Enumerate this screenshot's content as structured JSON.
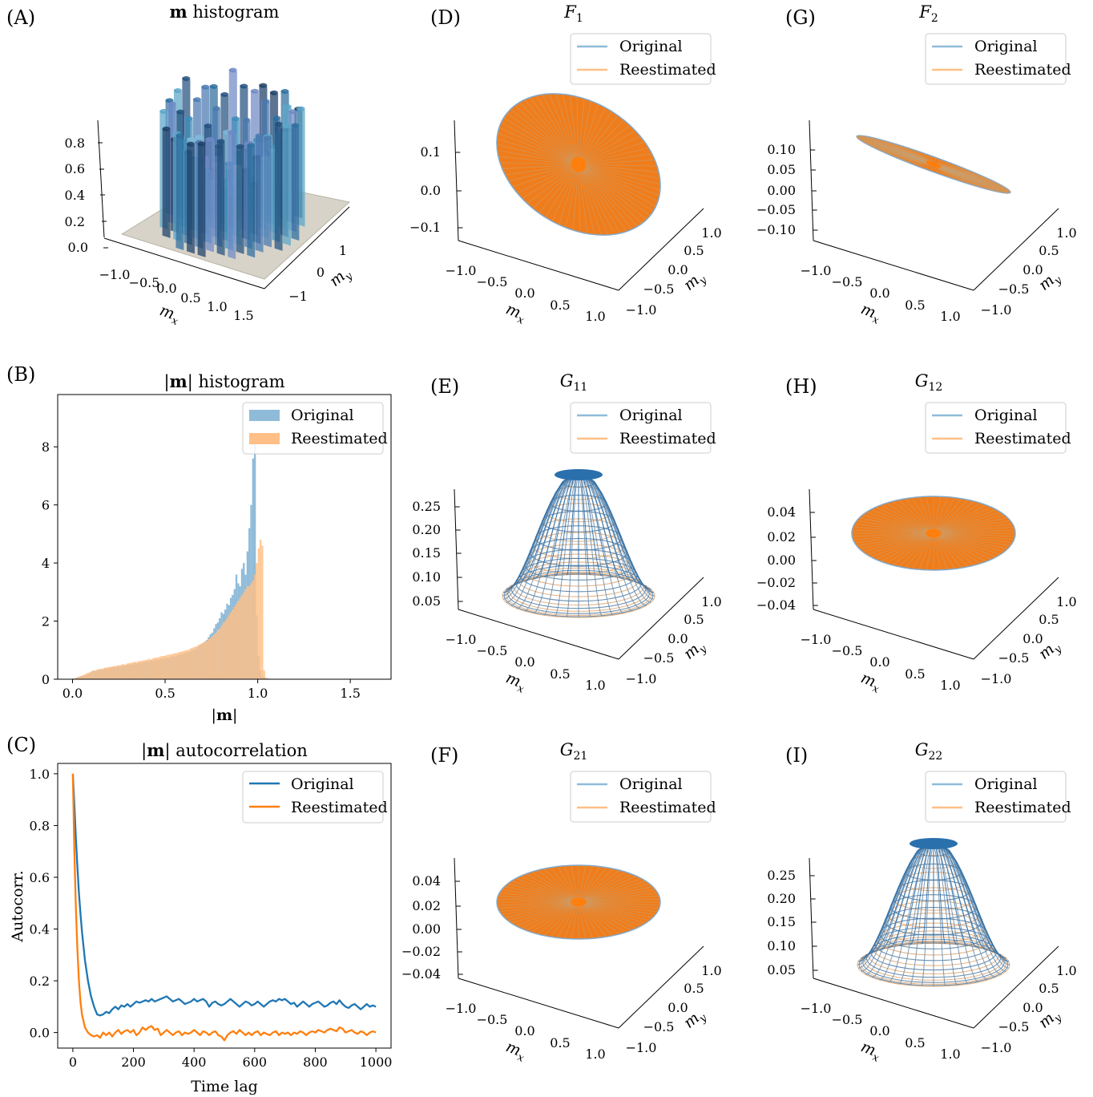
{
  "colors": {
    "original": "#1f77b4",
    "reestimated": "#ff7f0e",
    "original_light": "#8fbbd9",
    "reestimated_light": "#ffbf86"
  },
  "panels": {
    "A": {
      "label": "(A)",
      "title_bold": "m",
      "title_rest": "histogram",
      "xlabel": "m",
      "xlabel_sub": "x",
      "ylabel": "m",
      "ylabel_sub": "y",
      "xticks": [
        "−1.0",
        "−0.5",
        "0.0",
        "0.5",
        "1.0",
        "1.5"
      ],
      "yticks": [
        "−1",
        "0",
        "1"
      ],
      "zticks": [
        "0.0",
        "0.2",
        "0.4",
        "0.6",
        "0.8"
      ]
    },
    "D": {
      "label": "(D)",
      "title": "F",
      "title_sub": "1",
      "zticks": [
        "0.1",
        "0.0",
        "−0.1"
      ]
    },
    "G": {
      "label": "(G)",
      "title": "F",
      "title_sub": "2",
      "zticks": [
        "0.10",
        "0.05",
        "0.00",
        "−0.05",
        "−0.10"
      ]
    },
    "E": {
      "label": "(E)",
      "title": "G",
      "title_sub": "11",
      "zticks": [
        "0.25",
        "0.20",
        "0.15",
        "0.10",
        "0.05"
      ]
    },
    "H": {
      "label": "(H)",
      "title": "G",
      "title_sub": "12",
      "zticks": [
        "0.04",
        "0.02",
        "0.00",
        "−0.02",
        "−0.04"
      ]
    },
    "F": {
      "label": "(F)",
      "title": "G",
      "title_sub": "21",
      "zticks": [
        "0.04",
        "0.02",
        "0.00",
        "−0.02",
        "−0.04"
      ]
    },
    "I": {
      "label": "(I)",
      "title": "G",
      "title_sub": "22",
      "zticks": [
        "0.25",
        "0.20",
        "0.15",
        "0.10",
        "0.05"
      ]
    },
    "B": {
      "label": "(B)"
    },
    "C": {
      "label": "(C)"
    }
  },
  "surface_axes": {
    "xticks": [
      "−1.0",
      "−0.5",
      "0.0",
      "0.5",
      "1.0"
    ],
    "yticks": [
      "−1.0",
      "−0.5",
      "0.0",
      "0.5",
      "1.0"
    ],
    "xlabel": "m",
    "xlabel_sub": "x",
    "ylabel": "m",
    "ylabel_sub": "y"
  },
  "legend": {
    "original": "Original",
    "reestimated": "Reestimated"
  },
  "chart_data": [
    {
      "id": "B",
      "type": "bar",
      "title": "|m| histogram",
      "title_bold": "m",
      "xlabel": "|m|",
      "ylabel": "",
      "xlim": [
        -0.08,
        1.72
      ],
      "ylim": [
        0,
        9.8
      ],
      "xticks": [
        "0.0",
        "0.5",
        "1.0",
        "1.5"
      ],
      "xtick_values": [
        0,
        0.5,
        1.0,
        1.5
      ],
      "yticks": [
        "0",
        "2",
        "4",
        "6",
        "8"
      ],
      "ytick_values": [
        0,
        2,
        4,
        6,
        8
      ],
      "legend_position": "top-right",
      "series": [
        {
          "name": "Original",
          "bin_edges_start": 0.0,
          "bin_width": 0.01,
          "values": [
            0.02,
            0.03,
            0.06,
            0.08,
            0.1,
            0.12,
            0.14,
            0.15,
            0.18,
            0.2,
            0.26,
            0.3,
            0.28,
            0.33,
            0.3,
            0.35,
            0.33,
            0.36,
            0.38,
            0.36,
            0.4,
            0.4,
            0.42,
            0.4,
            0.45,
            0.43,
            0.46,
            0.48,
            0.45,
            0.5,
            0.5,
            0.52,
            0.5,
            0.55,
            0.53,
            0.56,
            0.58,
            0.56,
            0.6,
            0.6,
            0.62,
            0.6,
            0.65,
            0.63,
            0.66,
            0.68,
            0.66,
            0.7,
            0.7,
            0.72,
            0.72,
            0.75,
            0.74,
            0.78,
            0.8,
            0.78,
            0.82,
            0.85,
            0.84,
            0.88,
            0.9,
            0.92,
            0.95,
            0.96,
            1.0,
            1.02,
            1.05,
            1.1,
            1.15,
            1.2,
            1.25,
            1.3,
            1.35,
            1.45,
            1.55,
            1.6,
            1.75,
            1.9,
            1.95,
            2.1,
            2.3,
            2.25,
            2.4,
            2.6,
            2.55,
            2.8,
            2.9,
            3.1,
            3.6,
            3.3,
            3.2,
            3.8,
            4.0,
            3.6,
            4.4,
            5.2,
            6.0,
            7.6,
            8.2,
            2.2,
            0.8,
            0.3,
            0.1,
            0.05,
            0.03,
            0.02,
            0.01
          ]
        },
        {
          "name": "Reestimated",
          "bin_edges_start": 0.0,
          "bin_width": 0.01,
          "values": [
            0.02,
            0.04,
            0.06,
            0.09,
            0.11,
            0.13,
            0.16,
            0.2,
            0.22,
            0.25,
            0.28,
            0.3,
            0.3,
            0.34,
            0.35,
            0.35,
            0.37,
            0.4,
            0.4,
            0.42,
            0.42,
            0.44,
            0.45,
            0.46,
            0.48,
            0.48,
            0.5,
            0.52,
            0.5,
            0.54,
            0.55,
            0.56,
            0.58,
            0.6,
            0.58,
            0.62,
            0.62,
            0.64,
            0.65,
            0.66,
            0.68,
            0.7,
            0.68,
            0.72,
            0.74,
            0.74,
            0.76,
            0.78,
            0.8,
            0.8,
            0.82,
            0.84,
            0.85,
            0.86,
            0.88,
            0.9,
            0.9,
            0.93,
            0.95,
            0.96,
            0.98,
            1.0,
            1.0,
            1.05,
            1.08,
            1.1,
            1.12,
            1.15,
            1.2,
            1.22,
            1.25,
            1.3,
            1.32,
            1.38,
            1.42,
            1.48,
            1.55,
            1.6,
            1.7,
            1.75,
            1.85,
            1.95,
            2.0,
            2.1,
            2.2,
            2.3,
            2.4,
            2.5,
            2.6,
            2.7,
            2.8,
            2.9,
            3.0,
            3.1,
            3.2,
            3.2,
            3.3,
            3.4,
            3.6,
            4.0,
            4.5,
            4.8,
            4.6,
            0.3,
            0.05,
            0.01
          ]
        }
      ]
    },
    {
      "id": "C",
      "type": "line",
      "title": "|m| autocorrelation",
      "title_bold": "m",
      "xlabel": "Time lag",
      "ylabel": "Autocorr.",
      "xlim": [
        -50,
        1050
      ],
      "ylim": [
        -0.06,
        1.04
      ],
      "xticks": [
        "0",
        "200",
        "400",
        "600",
        "800",
        "1000"
      ],
      "xtick_values": [
        0,
        200,
        400,
        600,
        800,
        1000
      ],
      "yticks": [
        "0.0",
        "0.2",
        "0.4",
        "0.6",
        "0.8",
        "1.0"
      ],
      "ytick_values": [
        0,
        0.2,
        0.4,
        0.6,
        0.8,
        1.0
      ],
      "legend_position": "top-right",
      "x": [
        0,
        5,
        10,
        15,
        20,
        25,
        30,
        40,
        50,
        60,
        70,
        80,
        90,
        100,
        110,
        120,
        130,
        140,
        150,
        160,
        170,
        180,
        190,
        200,
        210,
        220,
        230,
        240,
        250,
        260,
        270,
        280,
        290,
        300,
        310,
        320,
        330,
        340,
        350,
        360,
        370,
        380,
        390,
        400,
        410,
        420,
        430,
        440,
        450,
        460,
        470,
        480,
        490,
        500,
        510,
        520,
        530,
        540,
        550,
        560,
        570,
        580,
        590,
        600,
        610,
        620,
        630,
        640,
        650,
        660,
        670,
        680,
        690,
        700,
        710,
        720,
        730,
        740,
        750,
        760,
        770,
        780,
        790,
        800,
        810,
        820,
        830,
        840,
        850,
        860,
        870,
        880,
        890,
        900,
        910,
        920,
        930,
        940,
        950,
        960,
        970,
        980,
        990,
        1000
      ],
      "series": [
        {
          "name": "Original",
          "values": [
            1.0,
            0.88,
            0.75,
            0.64,
            0.54,
            0.46,
            0.39,
            0.28,
            0.2,
            0.14,
            0.1,
            0.07,
            0.066,
            0.07,
            0.08,
            0.075,
            0.09,
            0.1,
            0.09,
            0.105,
            0.1,
            0.11,
            0.1,
            0.11,
            0.12,
            0.115,
            0.12,
            0.125,
            0.12,
            0.13,
            0.12,
            0.125,
            0.13,
            0.135,
            0.14,
            0.13,
            0.12,
            0.125,
            0.13,
            0.12,
            0.11,
            0.115,
            0.12,
            0.13,
            0.12,
            0.125,
            0.13,
            0.12,
            0.1,
            0.115,
            0.12,
            0.11,
            0.105,
            0.11,
            0.12,
            0.13,
            0.12,
            0.11,
            0.1,
            0.11,
            0.12,
            0.115,
            0.105,
            0.11,
            0.12,
            0.11,
            0.1,
            0.11,
            0.12,
            0.125,
            0.12,
            0.13,
            0.125,
            0.13,
            0.12,
            0.11,
            0.115,
            0.1,
            0.11,
            0.12,
            0.11,
            0.1,
            0.11,
            0.115,
            0.12,
            0.11,
            0.1,
            0.105,
            0.115,
            0.12,
            0.11,
            0.125,
            0.11,
            0.1,
            0.095,
            0.105,
            0.11,
            0.1,
            0.09,
            0.1,
            0.11,
            0.1,
            0.105,
            0.1
          ]
        },
        {
          "name": "Reestimated",
          "values": [
            1.0,
            0.7,
            0.48,
            0.32,
            0.2,
            0.12,
            0.07,
            0.02,
            0.0,
            -0.01,
            -0.015,
            -0.01,
            -0.02,
            0.0,
            -0.01,
            0.0,
            -0.015,
            0.0,
            0.01,
            -0.005,
            0.005,
            0.01,
            0.0,
            0.01,
            -0.01,
            0.0,
            0.02,
            0.01,
            0.02,
            0.025,
            0.01,
            0.015,
            -0.01,
            0.0,
            0.01,
            0.0,
            -0.01,
            0.0,
            0.005,
            -0.01,
            0.0,
            -0.005,
            0.0,
            0.01,
            0.0,
            -0.01,
            0.005,
            0.0,
            -0.01,
            0.0,
            0.005,
            -0.01,
            -0.015,
            -0.03,
            -0.01,
            0.0,
            0.005,
            -0.005,
            0.01,
            0.0,
            -0.01,
            0.0,
            -0.01,
            0.0,
            0.005,
            -0.01,
            0.0,
            -0.005,
            -0.01,
            0.0,
            0.005,
            -0.01,
            0.0,
            -0.005,
            0.0,
            -0.01,
            0.0,
            -0.005,
            0.005,
            0.0,
            -0.01,
            0.0,
            0.005,
            0.0,
            0.01,
            0.005,
            0.0,
            0.01,
            0.015,
            0.01,
            0.005,
            0.02,
            0.015,
            0.0,
            0.005,
            0.01,
            0.0,
            -0.005,
            0.005,
            0.0,
            -0.01,
            0.0,
            0.005,
            0.0
          ]
        }
      ]
    }
  ]
}
